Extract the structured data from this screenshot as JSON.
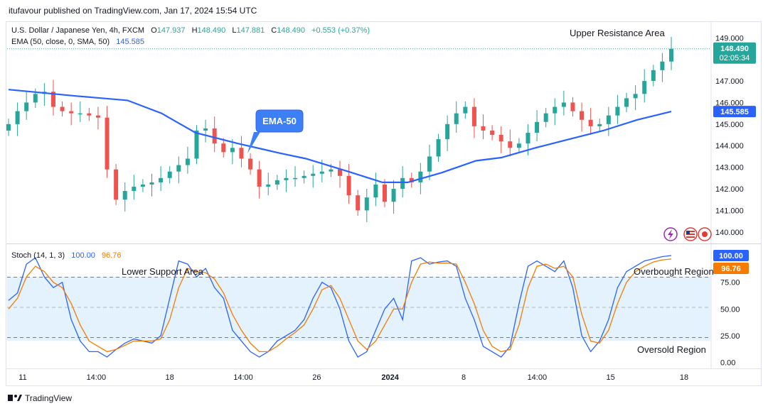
{
  "header": {
    "published": "itufavour published on TradingView.com, Jan 17, 2024 15:54 UTC"
  },
  "legend": {
    "symbol": "U.S. Dollar / Japanese Yen, 4h, FXCM",
    "o_label": "O",
    "o": "147.937",
    "h_label": "H",
    "h": "148.490",
    "l_label": "L",
    "l": "147.881",
    "c_label": "C",
    "c": "148.490",
    "change": "+0.553 (+0.37%)",
    "ema_label": "EMA (50, close, 0, SMA, 50)",
    "ema_value": "145.585"
  },
  "annotations": {
    "upper_resistance": "Upper Resistance Area",
    "ema_callout": "EMA-50",
    "lower_support": "Lower Support Area",
    "overbought": "Overbought Region",
    "oversold": "Oversold Region"
  },
  "price_badges": {
    "last_price": "148.490",
    "countdown": "02:05:34",
    "ema": "145.585"
  },
  "stoch_legend": {
    "label": "Stoch (14, 1, 3)",
    "k": "100.00",
    "d": "96.76"
  },
  "stoch_badges": {
    "k": "100.00",
    "d": "96.76"
  },
  "footer": {
    "brand": "TradingView"
  },
  "colors": {
    "up": "#26a69a",
    "down": "#ef5350",
    "ema": "#2962ff",
    "stoch_k": "#2962ff",
    "stoch_d": "#f57c00",
    "band": "#e3f2fd",
    "callout": "#2962ff"
  },
  "chart_data": [
    {
      "type": "candlestick",
      "title": "U.S. Dollar / Japanese Yen, 4h, FXCM",
      "y_ticks": [
        "149.000",
        "148.000",
        "147.000",
        "146.000",
        "145.000",
        "144.000",
        "143.000",
        "142.000",
        "141.000",
        "140.000"
      ],
      "ylim": [
        139.5,
        149.7
      ],
      "x_ticks": [
        "11",
        "14:00",
        "18",
        "14:00",
        "26",
        "2024",
        "8",
        "14:00",
        "15",
        "18"
      ],
      "close_path": [
        145.0,
        145.6,
        146.0,
        146.4,
        146.5,
        145.8,
        145.6,
        145.5,
        145.5,
        145.4,
        145.3,
        142.9,
        141.5,
        141.9,
        142.1,
        142.2,
        142.3,
        142.5,
        142.8,
        143.1,
        143.4,
        144.7,
        144.8,
        144.1,
        143.7,
        143.9,
        143.4,
        142.9,
        142.1,
        142.2,
        142.4,
        142.5,
        142.5,
        142.6,
        142.7,
        142.8,
        142.9,
        142.6,
        141.7,
        141.0,
        141.6,
        142.2,
        141.4,
        142.0,
        142.5,
        142.3,
        142.8,
        143.5,
        144.3,
        145.0,
        145.5,
        145.8,
        144.9,
        144.7,
        144.5,
        144.2,
        143.9,
        144.1,
        144.6,
        145.1,
        145.5,
        145.8,
        146.0,
        145.6,
        145.2,
        144.9,
        145.0,
        145.4,
        145.8,
        146.2,
        146.4,
        147.0,
        147.5,
        147.9,
        148.49
      ],
      "ema": [
        {
          "x": 0,
          "y": 146.6
        },
        {
          "x": 8,
          "y": 146.3
        },
        {
          "x": 14,
          "y": 146.1
        },
        {
          "x": 18,
          "y": 145.5
        },
        {
          "x": 22,
          "y": 144.6
        },
        {
          "x": 27,
          "y": 144.1
        },
        {
          "x": 32,
          "y": 143.65
        },
        {
          "x": 35,
          "y": 143.4
        },
        {
          "x": 40,
          "y": 142.8
        },
        {
          "x": 44,
          "y": 142.3
        },
        {
          "x": 47,
          "y": 142.3
        },
        {
          "x": 51,
          "y": 142.75
        },
        {
          "x": 55,
          "y": 143.3
        },
        {
          "x": 58,
          "y": 143.45
        },
        {
          "x": 62,
          "y": 143.9
        },
        {
          "x": 66,
          "y": 144.3
        },
        {
          "x": 70,
          "y": 144.7
        },
        {
          "x": 74,
          "y": 145.2
        },
        {
          "x": 78,
          "y": 145.585
        }
      ],
      "ema_value": 145.585
    },
    {
      "type": "line",
      "title": "Stoch (14, 1, 3)",
      "y_ticks": [
        "75.00",
        "50.00",
        "25.00",
        "0.00"
      ],
      "ylim": [
        -5,
        110
      ],
      "bands": [
        20,
        80
      ],
      "series": [
        {
          "name": "%K",
          "values": [
            58,
            65,
            92,
            98,
            80,
            70,
            75,
            40,
            20,
            10,
            10,
            5,
            12,
            18,
            22,
            20,
            18,
            25,
            60,
            95,
            92,
            80,
            88,
            70,
            60,
            30,
            20,
            10,
            5,
            10,
            20,
            25,
            30,
            40,
            60,
            75,
            70,
            50,
            20,
            5,
            10,
            30,
            50,
            60,
            40,
            95,
            98,
            92,
            94,
            95,
            90,
            60,
            40,
            15,
            10,
            5,
            15,
            55,
            90,
            95,
            90,
            85,
            95,
            70,
            25,
            10,
            20,
            40,
            70,
            85,
            90,
            95,
            97,
            99,
            100
          ]
        },
        {
          "name": "%D",
          "values": [
            50,
            60,
            80,
            90,
            85,
            75,
            70,
            55,
            35,
            20,
            15,
            10,
            12,
            16,
            20,
            20,
            20,
            22,
            40,
            70,
            88,
            85,
            84,
            78,
            65,
            45,
            30,
            18,
            10,
            10,
            15,
            22,
            28,
            35,
            50,
            68,
            72,
            60,
            40,
            20,
            12,
            20,
            35,
            50,
            50,
            75,
            92,
            94,
            93,
            93,
            92,
            75,
            55,
            30,
            15,
            10,
            12,
            35,
            70,
            90,
            92,
            88,
            90,
            80,
            45,
            20,
            18,
            30,
            55,
            75,
            85,
            90,
            94,
            96,
            96.76
          ]
        }
      ],
      "k_value": 100.0,
      "d_value": 96.76
    }
  ]
}
